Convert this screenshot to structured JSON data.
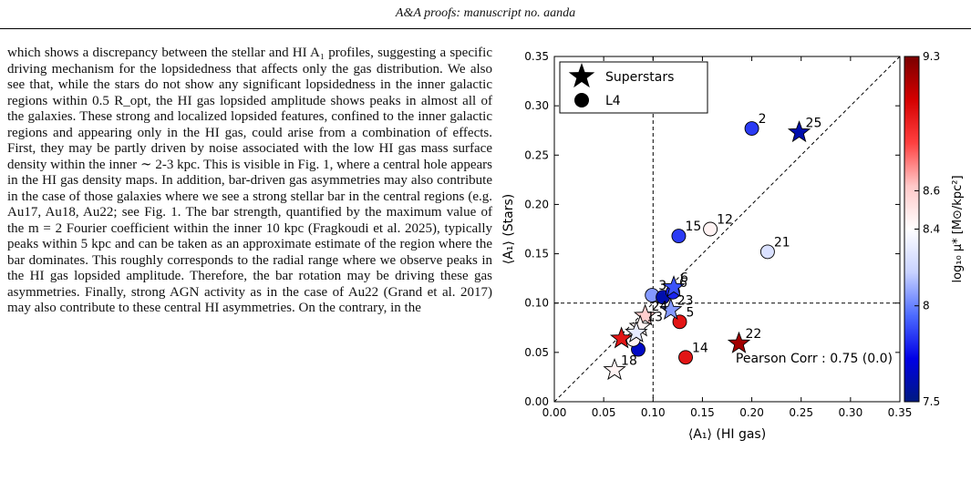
{
  "header": {
    "prefix": "A&A proofs:",
    "rest": " manuscript no. aanda"
  },
  "body_text": "which shows a discrepancy between the stellar and HI A₁ profiles, suggesting a specific driving mechanism for the lopsidedness that affects only the gas distribution. We also see that, while the stars do not show any significant lopsidedness in the inner galactic regions within 0.5 R_opt, the HI gas lopsided amplitude shows peaks in almost all of the galaxies. These strong and localized lopsided features, confined to the inner galactic regions and appearing only in the HI gas, could arise from a combination of effects. First, they may be partly driven by noise associated with the low HI gas mass surface density within the inner ∼ 2-3 kpc. This is visible in Fig. 1, where a central hole appears in the HI gas density maps. In addition, bar-driven gas asymmetries may also contribute in the case of those galaxies where we see a strong stellar bar in the central regions (e.g. Au17, Au18, Au22; see Fig. 1. The bar strength, quantified by the maximum value of the m = 2 Fourier coefficient within the inner 10 kpc (Fragkoudi et al. 2025), typically peaks within 5 kpc and can be taken as an approximate estimate of the region where the bar dominates. This roughly corresponds to the radial range where we observe peaks in the HI gas lopsided amplitude. Therefore, the bar rotation may be driving these gas asymmetries. Finally, strong AGN activity as in the case of Au22 (Grand et al. 2017) may also contribute to these central HI asymmetries. On the contrary, in the",
  "chart_data": {
    "type": "scatter",
    "xlabel": "⟨A₁⟩ (HI gas)",
    "ylabel": "⟨A₁⟩ (Stars)",
    "xlim": [
      0.0,
      0.35
    ],
    "ylim": [
      0.0,
      0.35
    ],
    "xticks": [
      "0.00",
      "0.05",
      "0.10",
      "0.15",
      "0.20",
      "0.25",
      "0.30",
      "0.35"
    ],
    "yticks": [
      "0.00",
      "0.05",
      "0.10",
      "0.15",
      "0.20",
      "0.25",
      "0.30",
      "0.35"
    ],
    "reference_lines": {
      "one_to_one": true,
      "vertical_x": 0.1,
      "horizontal_y": 0.1
    },
    "legend": {
      "position": "top-left",
      "entries": [
        "Superstars",
        "L4"
      ]
    },
    "annotation": "Pearson Corr : 0.75 (0.0)",
    "colorbar": {
      "label": "log₁₀ μ* [M⊙/kpc²]",
      "range": [
        7.5,
        9.3
      ],
      "ticks": [
        "9.3",
        "8.6",
        "8.4",
        "8",
        "7.5"
      ],
      "cmap": [
        "#001a80",
        "#0000e6",
        "#4d6bff",
        "#c8d2ff",
        "#ffffff",
        "#ffc8c8",
        "#ff4040",
        "#d40000",
        "#7a0000"
      ]
    },
    "series": [
      {
        "name": "Superstars",
        "marker": "star",
        "points": [
          {
            "label": "25",
            "x": 0.248,
            "y": 0.273,
            "c": 7.6
          },
          {
            "label": "6",
            "x": 0.121,
            "y": 0.116,
            "c": 7.9
          },
          {
            "label": "23",
            "x": 0.118,
            "y": 0.093,
            "c": 8.05
          },
          {
            "label": "24",
            "x": 0.092,
            "y": 0.087,
            "c": 8.6
          },
          {
            "label": "13",
            "x": 0.087,
            "y": 0.076,
            "c": 8.45
          },
          {
            "label": "",
            "x": 0.083,
            "y": 0.07,
            "c": 8.3
          },
          {
            "label": "",
            "x": 0.068,
            "y": 0.064,
            "c": 9.0
          },
          {
            "label": "22",
            "x": 0.187,
            "y": 0.059,
            "c": 9.2
          },
          {
            "label": "18",
            "x": 0.061,
            "y": 0.032,
            "c": 8.45
          }
        ]
      },
      {
        "name": "L4",
        "marker": "circle",
        "points": [
          {
            "label": "2",
            "x": 0.2,
            "y": 0.277,
            "c": 7.85
          },
          {
            "label": "21",
            "x": 0.216,
            "y": 0.152,
            "c": 8.25
          },
          {
            "label": "12",
            "x": 0.158,
            "y": 0.175,
            "c": 8.45
          },
          {
            "label": "15",
            "x": 0.126,
            "y": 0.168,
            "c": 7.85
          },
          {
            "label": "3",
            "x": 0.099,
            "y": 0.108,
            "c": 8.05
          },
          {
            "label": "",
            "x": 0.11,
            "y": 0.106,
            "c": 7.6
          },
          {
            "label": "6",
            "x": 0.12,
            "y": 0.111,
            "c": 7.8
          },
          {
            "label": "5",
            "x": 0.127,
            "y": 0.081,
            "c": 9.0
          },
          {
            "label": "14",
            "x": 0.133,
            "y": 0.045,
            "c": 9.0
          },
          {
            "label": "",
            "x": 0.085,
            "y": 0.053,
            "c": 7.65
          },
          {
            "label": "",
            "x": 0.08,
            "y": 0.063,
            "c": 8.45
          }
        ]
      }
    ]
  }
}
